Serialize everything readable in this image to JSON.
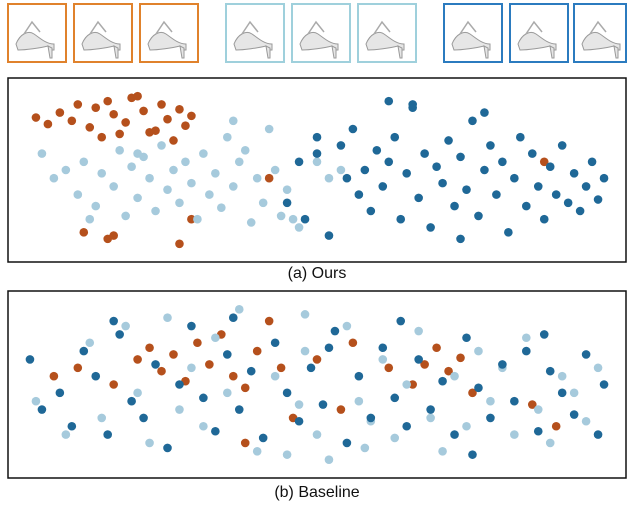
{
  "chart_data": [
    {
      "type": "scatter",
      "caption": "(a) Ours",
      "xlim": [
        0,
        100
      ],
      "ylim": [
        0,
        100
      ],
      "series": [
        {
          "color": "#b5501c",
          "x": [
            3,
            5,
            7,
            9,
            10,
            12,
            13,
            15,
            16,
            18,
            19,
            21,
            22,
            24,
            25,
            27,
            28,
            29,
            14,
            17,
            20,
            23,
            26,
            11,
            15,
            27,
            16,
            29,
            42,
            88
          ],
          "y": [
            82,
            78,
            85,
            80,
            90,
            76,
            88,
            92,
            84,
            79,
            94,
            86,
            73,
            90,
            81,
            87,
            77,
            83,
            70,
            72,
            95,
            74,
            68,
            12,
            8,
            5,
            10,
            20,
            45,
            55
          ]
        },
        {
          "color": "#a6cadc",
          "x": [
            4,
            6,
            8,
            10,
            11,
            13,
            14,
            16,
            17,
            18,
            19,
            20,
            21,
            22,
            23,
            24,
            25,
            26,
            27,
            28,
            29,
            30,
            31,
            32,
            33,
            34,
            35,
            36,
            37,
            38,
            39,
            40,
            41,
            42,
            43,
            44,
            45,
            46,
            47,
            50,
            52,
            54,
            12,
            20,
            36
          ],
          "y": [
            60,
            45,
            50,
            35,
            55,
            28,
            48,
            40,
            62,
            22,
            52,
            33,
            58,
            45,
            25,
            65,
            38,
            50,
            30,
            55,
            42,
            20,
            60,
            35,
            48,
            27,
            70,
            40,
            55,
            62,
            18,
            45,
            30,
            75,
            50,
            22,
            38,
            20,
            15,
            55,
            45,
            50,
            20,
            60,
            80
          ]
        },
        {
          "color": "#1f6897",
          "x": [
            45,
            47,
            48,
            50,
            52,
            54,
            55,
            56,
            57,
            58,
            59,
            60,
            61,
            62,
            63,
            64,
            65,
            66,
            67,
            68,
            69,
            70,
            71,
            72,
            73,
            74,
            75,
            76,
            77,
            78,
            79,
            80,
            81,
            82,
            83,
            84,
            85,
            86,
            87,
            88,
            89,
            90,
            91,
            92,
            93,
            94,
            95,
            96,
            97,
            98,
            62,
            66,
            74,
            78,
            50
          ],
          "y": [
            30,
            55,
            20,
            60,
            10,
            65,
            45,
            75,
            35,
            50,
            25,
            62,
            40,
            55,
            70,
            20,
            48,
            88,
            33,
            60,
            15,
            52,
            42,
            68,
            28,
            58,
            38,
            80,
            22,
            50,
            65,
            35,
            55,
            12,
            45,
            70,
            28,
            60,
            40,
            20,
            52,
            35,
            65,
            30,
            48,
            25,
            40,
            55,
            32,
            45,
            92,
            90,
            8,
            85,
            70
          ]
        }
      ]
    },
    {
      "type": "scatter",
      "caption": "(b) Baseline",
      "xlim": [
        0,
        100
      ],
      "ylim": [
        0,
        100
      ],
      "series": [
        {
          "color": "#b5501c",
          "x": [
            6,
            10,
            16,
            20,
            22,
            24,
            26,
            28,
            30,
            32,
            34,
            36,
            38,
            40,
            42,
            44,
            46,
            50,
            54,
            56,
            62,
            66,
            68,
            70,
            72,
            74,
            76,
            86,
            90,
            38
          ],
          "y": [
            55,
            60,
            50,
            65,
            72,
            58,
            68,
            52,
            75,
            62,
            80,
            55,
            48,
            70,
            88,
            60,
            30,
            65,
            35,
            75,
            60,
            50,
            62,
            72,
            58,
            66,
            45,
            38,
            25,
            15
          ]
        },
        {
          "color": "#a6cadc",
          "x": [
            3,
            8,
            12,
            14,
            18,
            20,
            22,
            25,
            27,
            29,
            31,
            33,
            35,
            37,
            40,
            43,
            45,
            47,
            48,
            50,
            52,
            55,
            57,
            59,
            61,
            63,
            65,
            67,
            69,
            71,
            73,
            75,
            77,
            79,
            81,
            83,
            85,
            87,
            89,
            91,
            93,
            95,
            97,
            48,
            58
          ],
          "y": [
            40,
            20,
            75,
            30,
            85,
            45,
            15,
            90,
            35,
            60,
            25,
            78,
            45,
            95,
            10,
            55,
            8,
            38,
            70,
            20,
            5,
            85,
            40,
            28,
            65,
            18,
            50,
            82,
            30,
            10,
            55,
            25,
            70,
            40,
            60,
            20,
            78,
            35,
            15,
            55,
            45,
            28,
            60,
            92,
            12
          ]
        },
        {
          "color": "#1f6897",
          "x": [
            2,
            4,
            7,
            9,
            11,
            13,
            15,
            17,
            19,
            21,
            23,
            25,
            27,
            29,
            31,
            33,
            35,
            37,
            39,
            41,
            43,
            45,
            47,
            49,
            51,
            53,
            55,
            57,
            59,
            61,
            63,
            65,
            67,
            69,
            71,
            73,
            75,
            77,
            79,
            81,
            83,
            85,
            87,
            89,
            91,
            93,
            95,
            97,
            16,
            36,
            52,
            64,
            76,
            88,
            98
          ],
          "y": [
            65,
            35,
            45,
            25,
            70,
            55,
            20,
            80,
            40,
            30,
            62,
            12,
            50,
            85,
            42,
            22,
            68,
            35,
            58,
            18,
            75,
            45,
            28,
            60,
            38,
            82,
            15,
            55,
            30,
            72,
            42,
            25,
            65,
            35,
            52,
            20,
            78,
            48,
            30,
            62,
            40,
            70,
            22,
            58,
            45,
            32,
            68,
            20,
            88,
            90,
            72,
            88,
            8,
            80,
            50
          ]
        }
      ]
    }
  ]
}
